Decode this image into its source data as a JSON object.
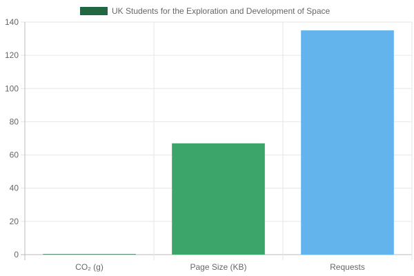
{
  "chart_data": {
    "type": "bar",
    "legend": {
      "label": "UK Students for the Exploration and Development of Space",
      "color": "#226644",
      "position": "top-center"
    },
    "categories": [
      "CO₂ (g)",
      "Page Size (KB)",
      "Requests"
    ],
    "values": [
      0.3,
      67,
      135
    ],
    "colors": [
      "#226644",
      "#3ba56a",
      "#63b4ec"
    ],
    "yaxis": {
      "min": 0,
      "max": 140,
      "step": 20,
      "ticks": [
        "0",
        "20",
        "40",
        "60",
        "80",
        "100",
        "120",
        "140"
      ]
    },
    "grid": true,
    "title": "",
    "xlabel": "",
    "ylabel": ""
  }
}
